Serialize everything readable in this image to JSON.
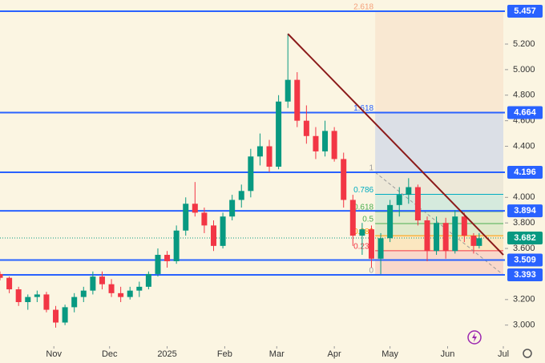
{
  "chart_data": {
    "type": "candlestick",
    "xlim": [
      2,
      273
    ],
    "xticks": [
      {
        "value": 31,
        "label": "Nov"
      },
      {
        "value": 61,
        "label": "Dec"
      },
      {
        "value": 92,
        "label": "2025"
      },
      {
        "value": 123,
        "label": "Feb"
      },
      {
        "value": 151,
        "label": "Mar"
      },
      {
        "value": 182,
        "label": "Apr"
      },
      {
        "value": 212,
        "label": "May"
      },
      {
        "value": 243,
        "label": "Jun"
      },
      {
        "value": 273,
        "label": "Jul"
      }
    ],
    "ylim": [
      2.835,
      5.545
    ],
    "yticks": [
      {
        "value": 3.0,
        "label": "3.000"
      },
      {
        "value": 3.2,
        "label": "3.200"
      },
      {
        "value": 3.6,
        "label": "3.600"
      },
      {
        "value": 3.8,
        "label": "3.800"
      },
      {
        "value": 4.0,
        "label": "4.000"
      },
      {
        "value": 4.4,
        "label": "4.400"
      },
      {
        "value": 4.6,
        "label": "4.600"
      },
      {
        "value": 4.8,
        "label": "4.800"
      },
      {
        "value": 5.0,
        "label": "5.000"
      },
      {
        "value": 5.2,
        "label": "5.200"
      }
    ],
    "up_color": "#089981",
    "down_color": "#f23645",
    "candles": {
      "x": [
        2,
        7,
        12,
        17,
        22,
        27,
        32,
        37,
        42,
        47,
        52,
        57,
        62,
        67,
        72,
        77,
        82,
        87,
        92,
        97,
        102,
        107,
        112,
        117,
        122,
        127,
        132,
        137,
        142,
        147,
        152,
        157,
        162,
        167,
        172,
        177,
        182,
        187,
        192,
        197,
        202,
        207,
        212,
        217,
        222,
        227,
        232,
        237,
        242,
        247,
        252,
        257,
        260
      ],
      "open": [
        3.4,
        3.37,
        3.28,
        3.18,
        3.22,
        3.24,
        3.12,
        3.02,
        3.14,
        3.22,
        3.27,
        3.38,
        3.32,
        3.25,
        3.22,
        3.27,
        3.3,
        3.4,
        3.55,
        3.5,
        3.74,
        3.95,
        3.88,
        3.78,
        3.62,
        3.85,
        3.98,
        4.05,
        4.32,
        4.4,
        4.24,
        4.75,
        4.92,
        4.6,
        4.48,
        4.36,
        4.52,
        4.3,
        3.98,
        3.7,
        3.75,
        3.52,
        3.68,
        3.94,
        4.02,
        4.08,
        3.82,
        3.58,
        3.8,
        3.58,
        3.85,
        3.7,
        3.62
      ],
      "high": [
        3.42,
        3.38,
        3.3,
        3.24,
        3.27,
        3.26,
        3.15,
        3.16,
        3.25,
        3.3,
        3.42,
        3.42,
        3.36,
        3.3,
        3.3,
        3.34,
        3.42,
        3.6,
        3.58,
        3.78,
        4.0,
        4.12,
        3.92,
        3.82,
        3.88,
        4.02,
        4.1,
        4.38,
        4.5,
        4.45,
        4.8,
        5.28,
        4.98,
        4.72,
        4.55,
        4.6,
        4.55,
        4.35,
        4.02,
        3.8,
        3.78,
        3.72,
        3.98,
        4.08,
        4.15,
        4.1,
        3.85,
        3.85,
        3.84,
        3.9,
        3.88,
        3.72,
        3.72
      ],
      "low": [
        3.35,
        3.25,
        3.15,
        3.12,
        3.18,
        3.1,
        2.98,
        3.0,
        3.1,
        3.18,
        3.24,
        3.28,
        3.22,
        3.18,
        3.2,
        3.22,
        3.28,
        3.38,
        3.45,
        3.48,
        3.7,
        3.85,
        3.72,
        3.58,
        3.6,
        3.82,
        3.92,
        4.0,
        4.25,
        4.2,
        4.22,
        4.7,
        4.55,
        4.42,
        4.3,
        4.32,
        4.28,
        3.92,
        3.62,
        3.55,
        3.45,
        3.4,
        3.65,
        3.85,
        3.95,
        3.78,
        3.5,
        3.55,
        3.52,
        3.56,
        3.65,
        3.56,
        3.6
      ],
      "close": [
        3.37,
        3.28,
        3.18,
        3.22,
        3.24,
        3.12,
        3.02,
        3.14,
        3.22,
        3.27,
        3.38,
        3.32,
        3.25,
        3.22,
        3.27,
        3.3,
        3.4,
        3.55,
        3.5,
        3.74,
        3.95,
        3.88,
        3.78,
        3.62,
        3.85,
        3.98,
        4.05,
        4.32,
        4.4,
        4.24,
        4.75,
        4.92,
        4.6,
        4.48,
        4.36,
        4.52,
        4.3,
        3.98,
        3.7,
        3.75,
        3.52,
        3.68,
        3.94,
        4.02,
        4.08,
        3.82,
        3.58,
        3.8,
        3.58,
        3.85,
        3.7,
        3.62,
        3.68
      ]
    },
    "levels": [
      5.457,
      4.664,
      4.196,
      3.894,
      3.509,
      3.393
    ],
    "level_color": "#2962ff",
    "last_price": 3.682,
    "fib": {
      "x": [
        204,
        273
      ],
      "levels": [
        2.618,
        1.618,
        1,
        0.786,
        0.618,
        0.5,
        0.382,
        0.236,
        0
      ],
      "prices": [
        5.457,
        4.664,
        4.196,
        4.024,
        3.889,
        3.795,
        3.7,
        3.582,
        3.393
      ],
      "colors": [
        "#f4a07a",
        "#2962ff",
        "#9e9e9e",
        "#00acc1",
        "#4caf50",
        "#4caf50",
        "#ff9800",
        "#f23645",
        "#9e9e9e"
      ]
    },
    "trendline": {
      "x": [
        157,
        273
      ],
      "y": [
        5.28,
        3.55
      ],
      "color": "#8b1a1a"
    }
  }
}
